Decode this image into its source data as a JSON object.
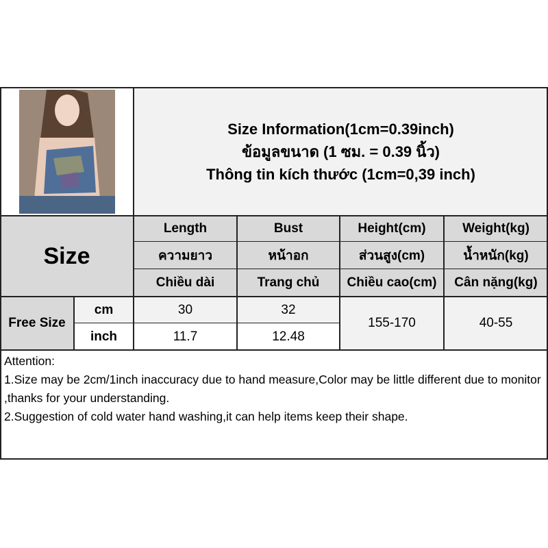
{
  "title": {
    "lines": [
      "Size Information(1cm=0.39inch)",
      "ข้อมูลขนาด (1 ซม. = 0.39 นิ้ว)",
      "Thông tin kích thước (1cm=0,39 inch)"
    ]
  },
  "product_photo": "model-wearing-tie-dye-tube-top",
  "size_header": "Size",
  "columns": [
    {
      "en": "Length",
      "th": "ความยาว",
      "vi": "Chiều dài"
    },
    {
      "en": "Bust",
      "th": "หน้าอก",
      "vi": "Trang chủ"
    },
    {
      "en": "Height(cm)",
      "th": "ส่วนสูง(cm)",
      "vi": "Chiều cao(cm)"
    },
    {
      "en": "Weight(kg)",
      "th": "น้ำหนัก(kg)",
      "vi": "Cân nặng(kg)"
    }
  ],
  "rows": {
    "size_name": "Free Size",
    "cm": {
      "unit": "cm",
      "length": "30",
      "bust": "32"
    },
    "inch": {
      "unit": "inch",
      "length": "11.7",
      "bust": "12.48"
    },
    "height": "155-170",
    "weight": "40-55"
  },
  "attention": {
    "heading": "Attention:",
    "note1": "1.Size may be 2cm/1inch inaccuracy due to hand measure,Color may be little different due to monitor ,thanks for your understanding.",
    "note2": "2.Suggestion of cold water hand washing,it can help items keep their shape."
  },
  "colors": {
    "header_gray": "#d9d9d9",
    "light_gray": "#f2f2f2",
    "border": "#222222"
  }
}
